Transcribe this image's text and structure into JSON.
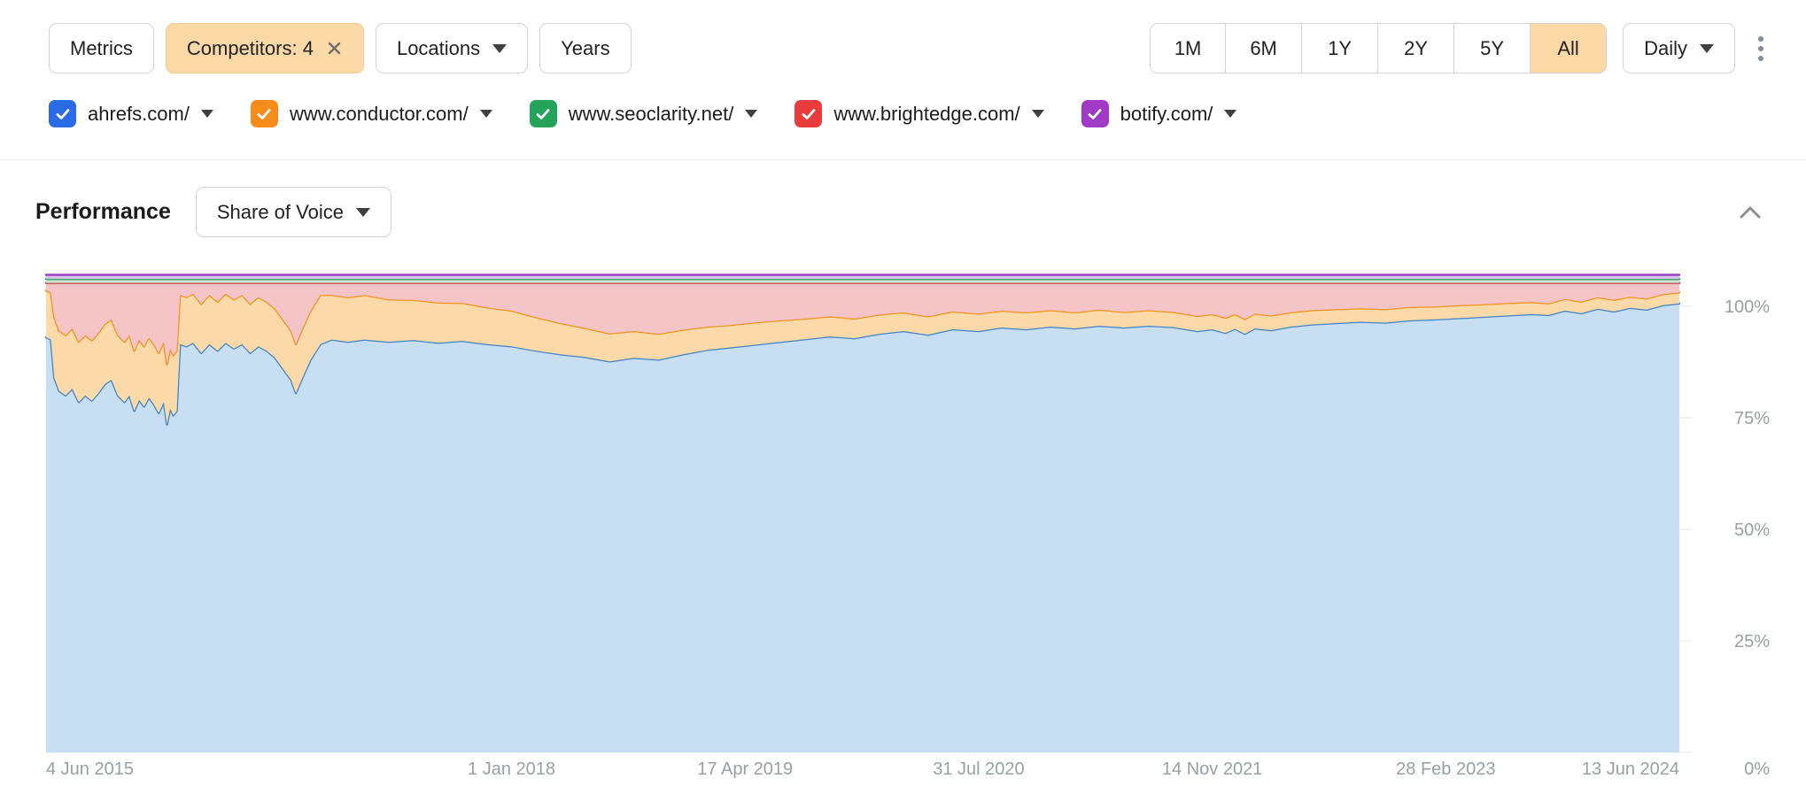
{
  "toolbar": {
    "metrics_label": "Metrics",
    "competitors_label": "Competitors: 4",
    "locations_label": "Locations",
    "years_label": "Years",
    "ranges": [
      "1M",
      "6M",
      "1Y",
      "2Y",
      "5Y",
      "All"
    ],
    "selected_range": "All",
    "interval_label": "Daily"
  },
  "icons": {
    "close": "x-cross",
    "caret_down": "triangle-down",
    "kebab": "vertical-dots",
    "chevron_up": "chevron-up",
    "checkbox_check": "white-check"
  },
  "legend": {
    "items": [
      {
        "label": "ahrefs.com/",
        "color": "#2b6ce6",
        "checked": true
      },
      {
        "label": "www.conductor.com/",
        "color": "#f88c1b",
        "checked": true
      },
      {
        "label": "www.seoclarity.net/",
        "color": "#24a35a",
        "checked": true
      },
      {
        "label": "www.brightedge.com/",
        "color": "#ea3c3c",
        "checked": true
      },
      {
        "label": "botify.com/",
        "color": "#a13ac6",
        "checked": true
      }
    ]
  },
  "performance": {
    "title": "Performance",
    "metric_label": "Share of Voice"
  },
  "colors": {
    "selected_button_bg": "#fbd9a6",
    "grid": "#e7e7e7",
    "tick_text": "#98a0a6"
  },
  "chart_data": {
    "type": "area",
    "stacked": true,
    "unit": "%",
    "metric": "Share of Voice",
    "axis_max": 107.5,
    "legend_position": "top",
    "grid": true,
    "x_range": [
      "4 Jun 2015",
      "13 Jun 2024"
    ],
    "x_ticks": [
      {
        "f": 0,
        "label": "4 Jun 2015"
      },
      {
        "f": 0.285,
        "label": "1 Jan 2018"
      },
      {
        "f": 0.428,
        "label": "17 Apr 2019"
      },
      {
        "f": 0.571,
        "label": "31 Jul 2020"
      },
      {
        "f": 0.714,
        "label": "14 Nov 2021"
      },
      {
        "f": 0.857,
        "label": "28 Feb 2023"
      },
      {
        "f": 1,
        "label": "13 Jun 2024"
      }
    ],
    "y_ticks": [
      {
        "v": 100,
        "label": "100%"
      },
      {
        "v": 75,
        "label": "75%"
      },
      {
        "v": 50,
        "label": "50%"
      },
      {
        "v": 25,
        "label": "25%"
      },
      {
        "v": 0,
        "label": "0%"
      }
    ],
    "note": "series listed bottom-to-top; values are cumulative stacked tops in percent, estimated from pixels",
    "x": [
      0,
      0.003,
      0.005,
      0.008,
      0.012,
      0.016,
      0.02,
      0.024,
      0.028,
      0.032,
      0.036,
      0.04,
      0.044,
      0.048,
      0.051,
      0.054,
      0.057,
      0.06,
      0.063,
      0.066,
      0.069,
      0.072,
      0.074,
      0.076,
      0.078,
      0.08,
      0.082,
      0.086,
      0.09,
      0.095,
      0.1,
      0.105,
      0.11,
      0.115,
      0.12,
      0.125,
      0.13,
      0.135,
      0.14,
      0.145,
      0.15,
      0.153,
      0.157,
      0.162,
      0.168,
      0.175,
      0.185,
      0.195,
      0.21,
      0.225,
      0.24,
      0.255,
      0.27,
      0.285,
      0.3,
      0.315,
      0.33,
      0.345,
      0.36,
      0.375,
      0.39,
      0.405,
      0.42,
      0.435,
      0.45,
      0.465,
      0.48,
      0.495,
      0.51,
      0.525,
      0.54,
      0.555,
      0.571,
      0.585,
      0.6,
      0.615,
      0.63,
      0.645,
      0.66,
      0.675,
      0.69,
      0.705,
      0.714,
      0.722,
      0.728,
      0.734,
      0.74,
      0.75,
      0.762,
      0.775,
      0.79,
      0.805,
      0.82,
      0.835,
      0.85,
      0.865,
      0.88,
      0.895,
      0.91,
      0.92,
      0.93,
      0.94,
      0.95,
      0.96,
      0.97,
      0.98,
      0.99,
      1
    ],
    "series": [
      {
        "name": "ahrefs.com/",
        "stroke": "#4183c4",
        "fill": "#c8def3",
        "cumulative": [
          93,
          92.5,
          84,
          81,
          80,
          81.5,
          78.5,
          80,
          78.8,
          80.5,
          82.5,
          83.5,
          80,
          78.5,
          80,
          76.5,
          79,
          77.5,
          79.5,
          78,
          76,
          78.5,
          73.5,
          77,
          75.5,
          76.5,
          91.5,
          91,
          91.8,
          89.5,
          91.5,
          90,
          91.8,
          90.5,
          91.5,
          89.5,
          91,
          90,
          88.5,
          86,
          83.5,
          80.5,
          84,
          88,
          91.5,
          92.5,
          92,
          92.5,
          92,
          92.4,
          91.8,
          92.2,
          91.5,
          91,
          90,
          89.2,
          88.6,
          87.6,
          88.4,
          88,
          89.2,
          90.2,
          90.8,
          91.4,
          92,
          92.6,
          93.2,
          92.8,
          93.8,
          94.4,
          93.6,
          94.8,
          94.4,
          95.2,
          94.8,
          95.4,
          95,
          95.6,
          95.2,
          95.6,
          95.3,
          94.4,
          94.8,
          94,
          94.9,
          93.8,
          95,
          94.6,
          95.4,
          95.9,
          96.2,
          96.5,
          96.3,
          96.8,
          97,
          97.3,
          97.6,
          97.9,
          98.2,
          98,
          99,
          98.4,
          99.4,
          98.8,
          99.6,
          99.2,
          100.2,
          100.6
        ]
      },
      {
        "name": "www.conductor.com/",
        "stroke": "#f2931d",
        "fill": "#fcd9a8",
        "cumulative": [
          103.5,
          103,
          97.5,
          94.5,
          93.5,
          95,
          92,
          93.5,
          92.3,
          94,
          96,
          97,
          93.5,
          92,
          93.5,
          90,
          92.5,
          91,
          93,
          91.5,
          89.5,
          92,
          87,
          90.5,
          89,
          90,
          102.5,
          102,
          102.8,
          100.5,
          102.5,
          101,
          102.8,
          101.5,
          102.5,
          100.5,
          102,
          101,
          99.5,
          97,
          94.5,
          91.5,
          95,
          99,
          102.5,
          102.5,
          102,
          102.5,
          101.5,
          101.4,
          100.8,
          100.7,
          99.7,
          99,
          97.5,
          96.2,
          95.1,
          93.9,
          94.4,
          93.8,
          94.7,
          95.4,
          95.8,
          96.4,
          96.8,
          97.2,
          97.7,
          97.2,
          98.1,
          98.6,
          97.7,
          98.8,
          98.3,
          99,
          98.6,
          99.1,
          98.6,
          99.2,
          98.7,
          99.1,
          98.7,
          97.8,
          98.2,
          97.4,
          98.2,
          97.1,
          98.3,
          97.9,
          98.6,
          99.1,
          99.3,
          99.5,
          99.3,
          99.8,
          99.9,
          100.2,
          100.4,
          100.7,
          100.9,
          100.6,
          101.6,
          101,
          102,
          101.4,
          102.1,
          101.7,
          102.7,
          103.1
        ]
      },
      {
        "name": "www.brightedge.com/",
        "stroke": "#c9473f",
        "fill": "#f5c4c6",
        "const": 105.2
      },
      {
        "name": "www.seoclarity.net/",
        "stroke": "#2e9e5e",
        "fill": "#c6e5d2",
        "const": 106.1
      },
      {
        "name": "botify.com/",
        "stroke": "#9a3fbd",
        "fill": "#d9c4e8",
        "const": 107
      }
    ]
  }
}
